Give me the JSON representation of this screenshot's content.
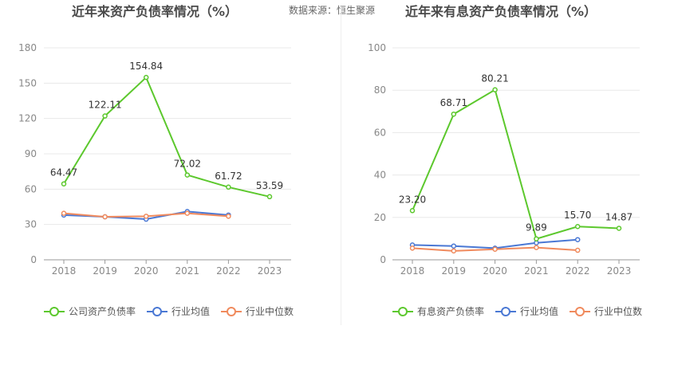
{
  "source_label": "数据来源：恒生聚源",
  "chart_data": [
    {
      "type": "line",
      "title": "近年来资产负债率情况（%）",
      "categories": [
        "2018",
        "2019",
        "2020",
        "2021",
        "2022",
        "2023"
      ],
      "ylim": [
        0,
        180
      ],
      "yticks": [
        0,
        30,
        60,
        90,
        120,
        150,
        180
      ],
      "grid": true,
      "legend_position": "bottom",
      "series": [
        {
          "name": "公司资产负债率",
          "color": "#5cc82d",
          "values": [
            64.47,
            122.11,
            154.84,
            72.02,
            61.72,
            53.59
          ],
          "labels": [
            "64.47",
            "122.11",
            "154.84",
            "72.02",
            "61.72",
            "53.59"
          ]
        },
        {
          "name": "行业均值",
          "color": "#4a78d4",
          "values": [
            38,
            36.5,
            34.5,
            41,
            38,
            null
          ]
        },
        {
          "name": "行业中位数",
          "color": "#f08a5d",
          "values": [
            39.5,
            36.5,
            37,
            39.5,
            37,
            null
          ]
        }
      ]
    },
    {
      "type": "line",
      "title": "近年来有息资产负债率情况（%）",
      "categories": [
        "2018",
        "2019",
        "2020",
        "2021",
        "2022",
        "2023"
      ],
      "ylim": [
        0,
        100
      ],
      "yticks": [
        0,
        20,
        40,
        60,
        80,
        100
      ],
      "grid": true,
      "legend_position": "bottom",
      "series": [
        {
          "name": "有息资产负债率",
          "color": "#5cc82d",
          "values": [
            23.2,
            68.71,
            80.21,
            9.89,
            15.7,
            14.87
          ],
          "labels": [
            "23.20",
            "68.71",
            "80.21",
            "9.89",
            "15.70",
            "14.87"
          ]
        },
        {
          "name": "行业均值",
          "color": "#4a78d4",
          "values": [
            7,
            6.5,
            5.5,
            8,
            9.5,
            null
          ]
        },
        {
          "name": "行业中位数",
          "color": "#f08a5d",
          "values": [
            5.5,
            4.2,
            5,
            5.8,
            4.5,
            null
          ]
        }
      ]
    }
  ]
}
